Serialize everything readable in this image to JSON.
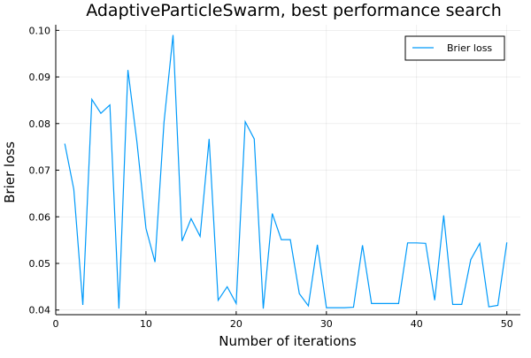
{
  "chart_data": {
    "type": "line",
    "title": "AdaptiveParticleSwarm, best performance search",
    "xlabel": "Number of iterations",
    "ylabel": "Brier loss",
    "xlim": [
      0,
      51.5
    ],
    "ylim": [
      0.039,
      0.1012
    ],
    "xticks": [
      0,
      10,
      20,
      30,
      40,
      50
    ],
    "yticks": [
      0.04,
      0.05,
      0.06,
      0.07,
      0.08,
      0.09,
      0.1
    ],
    "ytick_labels": [
      "0.04",
      "0.05",
      "0.06",
      "0.07",
      "0.08",
      "0.09",
      "0.10"
    ],
    "grid": true,
    "legend_position": "top-right",
    "series": [
      {
        "name": "Brier loss",
        "color": "#009AFA",
        "x": [
          1,
          2,
          3,
          4,
          5,
          6,
          7,
          8,
          9,
          10,
          11,
          12,
          13,
          14,
          15,
          16,
          17,
          18,
          19,
          20,
          21,
          22,
          23,
          24,
          25,
          26,
          27,
          28,
          29,
          30,
          31,
          32,
          33,
          34,
          35,
          36,
          37,
          38,
          39,
          40,
          41,
          42,
          43,
          44,
          45,
          46,
          47,
          48,
          49,
          50
        ],
        "y": [
          0.0757,
          0.0659,
          0.0411,
          0.0852,
          0.0822,
          0.084,
          0.0403,
          0.0915,
          0.076,
          0.0575,
          0.0503,
          0.0803,
          0.099,
          0.0548,
          0.0596,
          0.0558,
          0.0767,
          0.0421,
          0.045,
          0.0414,
          0.0804,
          0.0767,
          0.0403,
          0.0607,
          0.0551,
          0.0551,
          0.0435,
          0.0409,
          0.054,
          0.0405,
          0.0405,
          0.0405,
          0.0406,
          0.0539,
          0.0414,
          0.0414,
          0.0414,
          0.0414,
          0.0544,
          0.0544,
          0.0543,
          0.0421,
          0.0603,
          0.0412,
          0.0412,
          0.0508,
          0.0543,
          0.0407,
          0.041,
          0.0545
        ]
      }
    ]
  }
}
